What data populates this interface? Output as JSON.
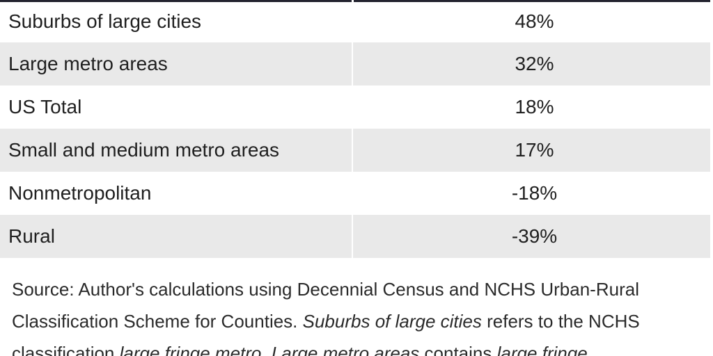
{
  "table": {
    "rows": [
      {
        "label": "Suburbs of large cities",
        "value": "48%"
      },
      {
        "label": "Large metro areas",
        "value": "32%"
      },
      {
        "label": "US Total",
        "value": "18%"
      },
      {
        "label": "Small and medium metro areas",
        "value": "17%"
      },
      {
        "label": "Nonmetropolitan",
        "value": "-18%"
      },
      {
        "label": "Rural",
        "value": "-39%"
      }
    ]
  },
  "source": {
    "part1": "Source: Author's calculations using Decennial Census and NCHS Urban-Rural Classification Scheme for Counties. ",
    "italic1": "Suburbs of large cities",
    "part2": " refers to the NCHS classification ",
    "italic2": "large fringe metro",
    "part3": ". ",
    "italic3": "Large metro areas",
    "part4": " contains ",
    "italic4": "large fringe"
  }
}
